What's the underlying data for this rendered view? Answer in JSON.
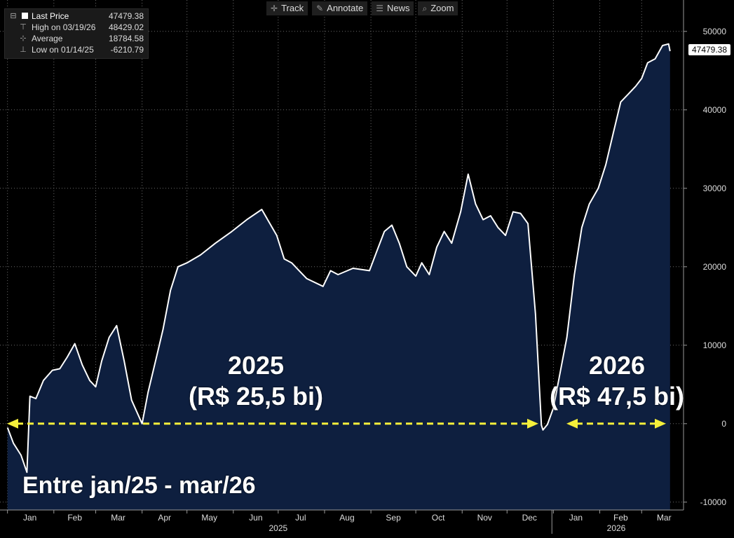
{
  "legend": {
    "last_price_label": "Last Price",
    "last_price_value": "47479.38",
    "high_label": "High on 03/19/26",
    "high_value": "48429.02",
    "average_label": "Average",
    "average_value": "18784.58",
    "low_label": "Low on 01/14/25",
    "low_value": "-6210.79"
  },
  "toolbar": {
    "track_label": "Track",
    "annotate_label": "Annotate",
    "news_label": "News",
    "zoom_label": "Zoom"
  },
  "annotations": {
    "label_2025_year": "2025",
    "label_2025_value": "(R$ 25,5 bi)",
    "label_2026_year": "2026",
    "label_2026_value": "(R$ 47,5 bi)",
    "period_label": "Entre jan/25 - mar/26"
  },
  "colors": {
    "background": "#000000",
    "area_fill": "#0e1f3f",
    "line": "#ffffff",
    "grid": "#6a6a6a",
    "arrow": "#f5ef3a"
  },
  "chart_data": {
    "type": "area",
    "title": "",
    "xlabel": "",
    "ylabel": "",
    "grid": true,
    "legend_position": "top-left",
    "ylim": [
      -11000,
      54000
    ],
    "y_ticks": [
      -10000,
      0,
      10000,
      20000,
      30000,
      40000,
      50000
    ],
    "y_tick_labels": [
      "-10000",
      "0",
      "10000",
      "20000",
      "30000",
      "40000",
      "50000"
    ],
    "x_tick_labels": [
      "Jan",
      "Feb",
      "Mar",
      "Apr",
      "May",
      "Jun",
      "Jul",
      "Aug",
      "Sep",
      "Oct",
      "Nov",
      "Dec",
      "Jan",
      "Feb",
      "Mar"
    ],
    "year_labels": [
      "2025",
      "2026"
    ],
    "last_value_label": "47479.38",
    "last_value": 47479.38,
    "series": [
      {
        "x": [
          "2025-01-01",
          "2025-01-05",
          "2025-01-10",
          "2025-01-14",
          "2025-01-16",
          "2025-01-20",
          "2025-01-25",
          "2025-01-31",
          "2025-02-05",
          "2025-02-10",
          "2025-02-15",
          "2025-02-20",
          "2025-02-25",
          "2025-03-01",
          "2025-03-05",
          "2025-03-10",
          "2025-03-15",
          "2025-03-20",
          "2025-03-25",
          "2025-04-01",
          "2025-04-05",
          "2025-04-10",
          "2025-04-15",
          "2025-04-20",
          "2025-04-25",
          "2025-05-01",
          "2025-05-10",
          "2025-05-20",
          "2025-05-31",
          "2025-06-10",
          "2025-06-20",
          "2025-06-30",
          "2025-07-05",
          "2025-07-10",
          "2025-07-15",
          "2025-07-20",
          "2025-07-31",
          "2025-08-05",
          "2025-08-10",
          "2025-08-20",
          "2025-08-31",
          "2025-09-05",
          "2025-09-10",
          "2025-09-15",
          "2025-09-20",
          "2025-09-25",
          "2025-10-01",
          "2025-10-05",
          "2025-10-10",
          "2025-10-15",
          "2025-10-20",
          "2025-10-25",
          "2025-10-31",
          "2025-11-05",
          "2025-11-10",
          "2025-11-15",
          "2025-11-20",
          "2025-11-25",
          "2025-11-30",
          "2025-12-05",
          "2025-12-10",
          "2025-12-15",
          "2025-12-20",
          "2025-12-24",
          "2025-12-25",
          "2025-12-28",
          "2026-01-01",
          "2026-01-05",
          "2026-01-10",
          "2026-01-15",
          "2026-01-20",
          "2026-01-25",
          "2026-01-31",
          "2026-02-05",
          "2026-02-10",
          "2026-02-15",
          "2026-02-20",
          "2026-02-25",
          "2026-03-01",
          "2026-03-05",
          "2026-03-10",
          "2026-03-15",
          "2026-03-19",
          "2026-03-20"
        ],
        "values": [
          -500,
          -2500,
          -4000,
          -6200,
          3500,
          3200,
          5500,
          6800,
          7000,
          8500,
          10200,
          7500,
          5500,
          4700,
          8000,
          11000,
          12500,
          8000,
          3000,
          0,
          4000,
          8000,
          12000,
          17000,
          20000,
          20500,
          21500,
          23000,
          24500,
          26000,
          27300,
          24000,
          21000,
          20500,
          19500,
          18500,
          17500,
          19500,
          19000,
          19800,
          19500,
          22000,
          24500,
          25300,
          23000,
          20000,
          18800,
          20500,
          19000,
          22500,
          24500,
          23000,
          27000,
          31800,
          28000,
          26000,
          26500,
          25000,
          24000,
          27000,
          26800,
          25500,
          14000,
          -200,
          -800,
          -100,
          2000,
          6000,
          11000,
          19000,
          25000,
          28000,
          30000,
          33000,
          37000,
          41000,
          42000,
          43000,
          44000,
          46000,
          46500,
          48200,
          48400,
          47479
        ]
      }
    ]
  }
}
